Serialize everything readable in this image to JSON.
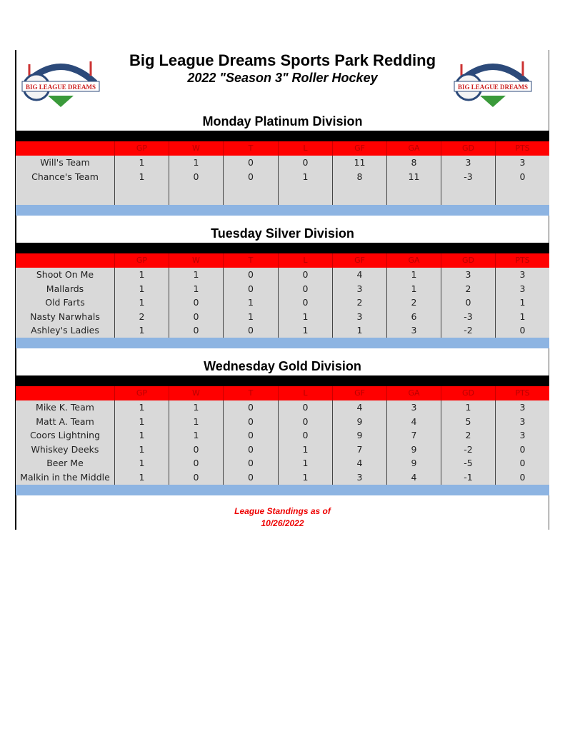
{
  "header": {
    "title": "Big League Dreams Sports Park Redding",
    "subtitle": "2022 \"Season 3\" Roller Hockey",
    "logo_text": "BIG LEAGUE DREAMS SPORTS PARKS"
  },
  "columns": [
    "",
    "GP",
    "W",
    "T",
    "L",
    "GF",
    "GA",
    "GD",
    "PTS"
  ],
  "colors": {
    "header_red": "#ff0000",
    "band_blue": "#8db4e2",
    "row_grey": "#d9d9d9",
    "footer_red": "#ee0000"
  },
  "divisions": [
    {
      "name": "Monday Platinum Division",
      "rows": [
        [
          "Will's Team",
          "1",
          "1",
          "0",
          "0",
          "11",
          "8",
          "3",
          "3"
        ],
        [
          "Chance's Team",
          "1",
          "0",
          "0",
          "1",
          "8",
          "11",
          "-3",
          "0"
        ]
      ]
    },
    {
      "name": "Tuesday Silver Division",
      "rows": [
        [
          "Shoot On Me",
          "1",
          "1",
          "0",
          "0",
          "4",
          "1",
          "3",
          "3"
        ],
        [
          "Mallards",
          "1",
          "1",
          "0",
          "0",
          "3",
          "1",
          "2",
          "3"
        ],
        [
          "Old Farts",
          "1",
          "0",
          "1",
          "0",
          "2",
          "2",
          "0",
          "1"
        ],
        [
          "Nasty Narwhals",
          "2",
          "0",
          "1",
          "1",
          "3",
          "6",
          "-3",
          "1"
        ],
        [
          "Ashley's Ladies",
          "1",
          "0",
          "0",
          "1",
          "1",
          "3",
          "-2",
          "0"
        ]
      ]
    },
    {
      "name": "Wednesday Gold Division",
      "rows": [
        [
          "Mike K. Team",
          "1",
          "1",
          "0",
          "0",
          "4",
          "3",
          "1",
          "3"
        ],
        [
          "Matt A. Team",
          "1",
          "1",
          "0",
          "0",
          "9",
          "4",
          "5",
          "3"
        ],
        [
          "Coors Lightning",
          "1",
          "1",
          "0",
          "0",
          "9",
          "7",
          "2",
          "3"
        ],
        [
          "Whiskey Deeks",
          "1",
          "0",
          "0",
          "1",
          "7",
          "9",
          "-2",
          "0"
        ],
        [
          "Beer Me",
          "1",
          "0",
          "0",
          "1",
          "4",
          "9",
          "-5",
          "0"
        ],
        [
          "Malkin in the Middle",
          "1",
          "0",
          "0",
          "1",
          "3",
          "4",
          "-1",
          "0"
        ]
      ]
    }
  ],
  "footer": {
    "line1": "League Standings as of",
    "line2": "10/26/2022"
  }
}
